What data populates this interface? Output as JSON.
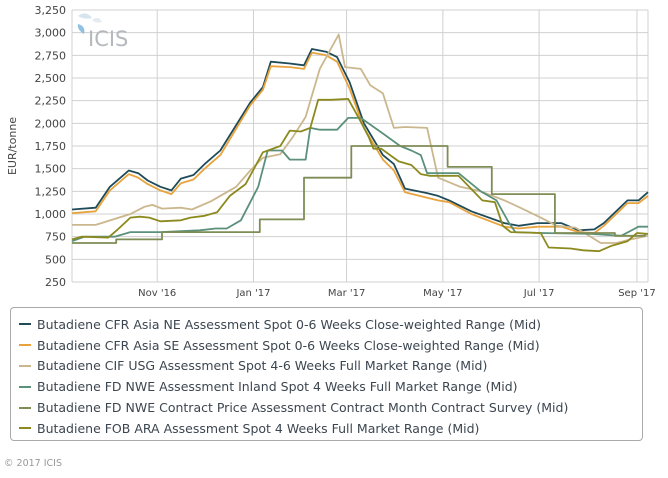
{
  "logo": "ICIS",
  "footer": "© 2017 ICIS",
  "chart_data": {
    "type": "line",
    "title": "",
    "xlabel": "",
    "ylabel": "EUR/tonne",
    "xlim": [
      "2016-09-08",
      "2017-09-08"
    ],
    "ylim": [
      250,
      3250
    ],
    "yticks": [
      250,
      500,
      750,
      1000,
      1250,
      1500,
      1750,
      2000,
      2250,
      2500,
      2750,
      3000,
      3250
    ],
    "ytick_labels": [
      "250",
      "500",
      "750",
      "1,000",
      "1,250",
      "1,500",
      "1,750",
      "2,000",
      "2,250",
      "2,500",
      "2,750",
      "3,000",
      "3,250"
    ],
    "xticks": [
      {
        "date": "2016-11-01",
        "label": "Nov '16"
      },
      {
        "date": "2017-01-01",
        "label": "Jan '17"
      },
      {
        "date": "2017-03-01",
        "label": "Mar '17"
      },
      {
        "date": "2017-05-01",
        "label": "May '17"
      },
      {
        "date": "2017-07-01",
        "label": "Jul '17"
      },
      {
        "date": "2017-09-01",
        "label": "Sep '17"
      }
    ],
    "grid": true,
    "legend_position": "bottom",
    "series": [
      {
        "name": "Butadiene CFR Asia NE Assessment Spot 0-6 Weeks Close-weighted Range (Mid)",
        "color": "#1f4b58",
        "points": [
          [
            "2016-09-08",
            1050
          ],
          [
            "2016-09-23",
            1070
          ],
          [
            "2016-10-02",
            1300
          ],
          [
            "2016-10-14",
            1480
          ],
          [
            "2016-10-20",
            1450
          ],
          [
            "2016-10-26",
            1370
          ],
          [
            "2016-11-03",
            1300
          ],
          [
            "2016-11-10",
            1260
          ],
          [
            "2016-11-16",
            1390
          ],
          [
            "2016-11-24",
            1430
          ],
          [
            "2016-12-01",
            1550
          ],
          [
            "2016-12-11",
            1700
          ],
          [
            "2016-12-30",
            2230
          ],
          [
            "2017-01-07",
            2400
          ],
          [
            "2017-01-12",
            2680
          ],
          [
            "2017-01-24",
            2660
          ],
          [
            "2017-02-02",
            2640
          ],
          [
            "2017-02-07",
            2820
          ],
          [
            "2017-02-16",
            2790
          ],
          [
            "2017-02-23",
            2730
          ],
          [
            "2017-03-03",
            2450
          ],
          [
            "2017-03-12",
            2000
          ],
          [
            "2017-03-24",
            1650
          ],
          [
            "2017-03-31",
            1550
          ],
          [
            "2017-04-07",
            1280
          ],
          [
            "2017-04-21",
            1230
          ],
          [
            "2017-04-28",
            1200
          ],
          [
            "2017-05-05",
            1150
          ],
          [
            "2017-05-19",
            1030
          ],
          [
            "2017-06-09",
            900
          ],
          [
            "2017-06-18",
            870
          ],
          [
            "2017-06-30",
            900
          ],
          [
            "2017-07-15",
            900
          ],
          [
            "2017-07-26",
            820
          ],
          [
            "2017-08-05",
            830
          ],
          [
            "2017-08-11",
            900
          ],
          [
            "2017-08-26",
            1150
          ],
          [
            "2017-09-02",
            1150
          ],
          [
            "2017-09-08",
            1240
          ]
        ]
      },
      {
        "name": "Butadiene CFR Asia SE Assessment Spot 0-6 Weeks Close-weighted Range (Mid)",
        "color": "#e8a33d",
        "points": [
          [
            "2016-09-08",
            1010
          ],
          [
            "2016-09-23",
            1030
          ],
          [
            "2016-10-02",
            1260
          ],
          [
            "2016-10-14",
            1440
          ],
          [
            "2016-10-20",
            1400
          ],
          [
            "2016-10-26",
            1330
          ],
          [
            "2016-11-03",
            1260
          ],
          [
            "2016-11-10",
            1220
          ],
          [
            "2016-11-16",
            1340
          ],
          [
            "2016-11-24",
            1380
          ],
          [
            "2016-12-01",
            1500
          ],
          [
            "2016-12-11",
            1650
          ],
          [
            "2016-12-30",
            2200
          ],
          [
            "2017-01-07",
            2370
          ],
          [
            "2017-01-12",
            2630
          ],
          [
            "2017-01-24",
            2620
          ],
          [
            "2017-02-02",
            2600
          ],
          [
            "2017-02-07",
            2780
          ],
          [
            "2017-02-16",
            2750
          ],
          [
            "2017-02-23",
            2680
          ],
          [
            "2017-03-03",
            2380
          ],
          [
            "2017-03-12",
            1950
          ],
          [
            "2017-03-24",
            1600
          ],
          [
            "2017-03-31",
            1480
          ],
          [
            "2017-04-07",
            1240
          ],
          [
            "2017-04-21",
            1180
          ],
          [
            "2017-04-28",
            1150
          ],
          [
            "2017-05-05",
            1130
          ],
          [
            "2017-05-19",
            1000
          ],
          [
            "2017-06-09",
            860
          ],
          [
            "2017-06-18",
            840
          ],
          [
            "2017-06-30",
            860
          ],
          [
            "2017-07-15",
            860
          ],
          [
            "2017-07-26",
            800
          ],
          [
            "2017-08-05",
            790
          ],
          [
            "2017-08-11",
            870
          ],
          [
            "2017-08-26",
            1120
          ],
          [
            "2017-09-02",
            1120
          ],
          [
            "2017-09-08",
            1200
          ]
        ]
      },
      {
        "name": "Butadiene CIF USG Assessment Spot 4-6 Weeks Full Market Range (Mid)",
        "color": "#cbb78e",
        "points": [
          [
            "2016-09-08",
            880
          ],
          [
            "2016-09-23",
            880
          ],
          [
            "2016-10-15",
            1000
          ],
          [
            "2016-10-24",
            1080
          ],
          [
            "2016-10-29",
            1100
          ],
          [
            "2016-11-04",
            1060
          ],
          [
            "2016-11-16",
            1070
          ],
          [
            "2016-11-23",
            1050
          ],
          [
            "2016-12-05",
            1140
          ],
          [
            "2016-12-21",
            1300
          ],
          [
            "2016-12-30",
            1480
          ],
          [
            "2017-01-07",
            1620
          ],
          [
            "2017-01-18",
            1660
          ],
          [
            "2017-01-26",
            1850
          ],
          [
            "2017-02-03",
            2070
          ],
          [
            "2017-02-12",
            2600
          ],
          [
            "2017-02-24",
            2980
          ],
          [
            "2017-02-28",
            2620
          ],
          [
            "2017-03-10",
            2600
          ],
          [
            "2017-03-16",
            2420
          ],
          [
            "2017-03-24",
            2330
          ],
          [
            "2017-03-31",
            1950
          ],
          [
            "2017-04-07",
            1960
          ],
          [
            "2017-04-21",
            1950
          ],
          [
            "2017-04-28",
            1400
          ],
          [
            "2017-05-12",
            1300
          ],
          [
            "2017-05-25",
            1250
          ],
          [
            "2017-06-09",
            1150
          ],
          [
            "2017-06-19",
            1070
          ],
          [
            "2017-07-02",
            960
          ],
          [
            "2017-07-12",
            870
          ],
          [
            "2017-07-24",
            850
          ],
          [
            "2017-07-29",
            800
          ],
          [
            "2017-08-09",
            680
          ],
          [
            "2017-08-19",
            680
          ],
          [
            "2017-08-28",
            720
          ],
          [
            "2017-09-08",
            760
          ]
        ]
      },
      {
        "name": "Butadiene FD NWE Assessment Inland Spot 4 Weeks Full Market Range (Mid)",
        "color": "#5b907a",
        "points": [
          [
            "2016-09-08",
            700
          ],
          [
            "2016-09-16",
            750
          ],
          [
            "2016-10-05",
            750
          ],
          [
            "2016-10-15",
            800
          ],
          [
            "2016-11-03",
            800
          ],
          [
            "2016-11-28",
            820
          ],
          [
            "2016-12-08",
            840
          ],
          [
            "2016-12-15",
            840
          ],
          [
            "2016-12-24",
            930
          ],
          [
            "2017-01-04",
            1300
          ],
          [
            "2017-01-10",
            1700
          ],
          [
            "2017-01-19",
            1700
          ],
          [
            "2017-01-24",
            1600
          ],
          [
            "2017-02-03",
            1600
          ],
          [
            "2017-02-06",
            1950
          ],
          [
            "2017-02-12",
            1930
          ],
          [
            "2017-02-23",
            1930
          ],
          [
            "2017-03-02",
            2060
          ],
          [
            "2017-03-10",
            2060
          ],
          [
            "2017-03-23",
            1900
          ],
          [
            "2017-04-04",
            1750
          ],
          [
            "2017-04-11",
            1700
          ],
          [
            "2017-04-17",
            1650
          ],
          [
            "2017-04-21",
            1450
          ],
          [
            "2017-05-11",
            1450
          ],
          [
            "2017-05-25",
            1250
          ],
          [
            "2017-06-04",
            1150
          ],
          [
            "2017-06-12",
            900
          ],
          [
            "2017-06-16",
            800
          ],
          [
            "2017-07-02",
            790
          ],
          [
            "2017-08-03",
            780
          ],
          [
            "2017-08-22",
            760
          ],
          [
            "2017-09-02",
            860
          ],
          [
            "2017-09-08",
            860
          ]
        ]
      },
      {
        "name": "Butadiene FD NWE Contract Price Assessment Contract Month Contract Survey (Mid)",
        "color": "#7e8c55",
        "points": [
          [
            "2016-09-08",
            680
          ],
          [
            "2016-10-06",
            680
          ],
          [
            "2016-10-06",
            720
          ],
          [
            "2016-11-04",
            720
          ],
          [
            "2016-11-04",
            800
          ],
          [
            "2017-01-05",
            800
          ],
          [
            "2017-01-05",
            940
          ],
          [
            "2017-02-02",
            940
          ],
          [
            "2017-02-02",
            1400
          ],
          [
            "2017-03-04",
            1400
          ],
          [
            "2017-03-04",
            1750
          ],
          [
            "2017-05-04",
            1750
          ],
          [
            "2017-05-04",
            1520
          ],
          [
            "2017-06-01",
            1520
          ],
          [
            "2017-06-01",
            1220
          ],
          [
            "2017-07-11",
            1220
          ],
          [
            "2017-07-11",
            790
          ],
          [
            "2017-08-18",
            790
          ],
          [
            "2017-08-18",
            760
          ],
          [
            "2017-09-06",
            760
          ],
          [
            "2017-09-06",
            780
          ],
          [
            "2017-09-08",
            780
          ]
        ]
      },
      {
        "name": "Butadiene FOB ARA Assessment Spot 4 Weeks Full Market Range (Mid)",
        "color": "#8c8a1e",
        "points": [
          [
            "2016-09-08",
            720
          ],
          [
            "2016-09-14",
            750
          ],
          [
            "2016-10-01",
            740
          ],
          [
            "2016-10-07",
            830
          ],
          [
            "2016-10-15",
            960
          ],
          [
            "2016-10-21",
            970
          ],
          [
            "2016-10-27",
            960
          ],
          [
            "2016-11-03",
            920
          ],
          [
            "2016-11-16",
            930
          ],
          [
            "2016-11-22",
            960
          ],
          [
            "2016-12-01",
            980
          ],
          [
            "2016-12-09",
            1020
          ],
          [
            "2016-12-17",
            1200
          ],
          [
            "2016-12-27",
            1330
          ],
          [
            "2017-01-07",
            1680
          ],
          [
            "2017-01-18",
            1750
          ],
          [
            "2017-01-24",
            1920
          ],
          [
            "2017-01-31",
            1910
          ],
          [
            "2017-02-06",
            1950
          ],
          [
            "2017-02-11",
            2260
          ],
          [
            "2017-02-19",
            2260
          ],
          [
            "2017-03-02",
            2270
          ],
          [
            "2017-03-09",
            2050
          ],
          [
            "2017-03-15",
            1850
          ],
          [
            "2017-03-18",
            1720
          ],
          [
            "2017-03-23",
            1720
          ],
          [
            "2017-04-03",
            1580
          ],
          [
            "2017-04-11",
            1540
          ],
          [
            "2017-04-17",
            1440
          ],
          [
            "2017-04-23",
            1420
          ],
          [
            "2017-05-11",
            1420
          ],
          [
            "2017-05-26",
            1150
          ],
          [
            "2017-06-03",
            1130
          ],
          [
            "2017-06-08",
            870
          ],
          [
            "2017-06-13",
            800
          ],
          [
            "2017-07-02",
            790
          ],
          [
            "2017-07-07",
            630
          ],
          [
            "2017-07-21",
            620
          ],
          [
            "2017-07-29",
            600
          ],
          [
            "2017-08-08",
            590
          ],
          [
            "2017-08-16",
            650
          ],
          [
            "2017-08-26",
            700
          ],
          [
            "2017-09-01",
            790
          ],
          [
            "2017-09-08",
            780
          ]
        ]
      }
    ]
  }
}
